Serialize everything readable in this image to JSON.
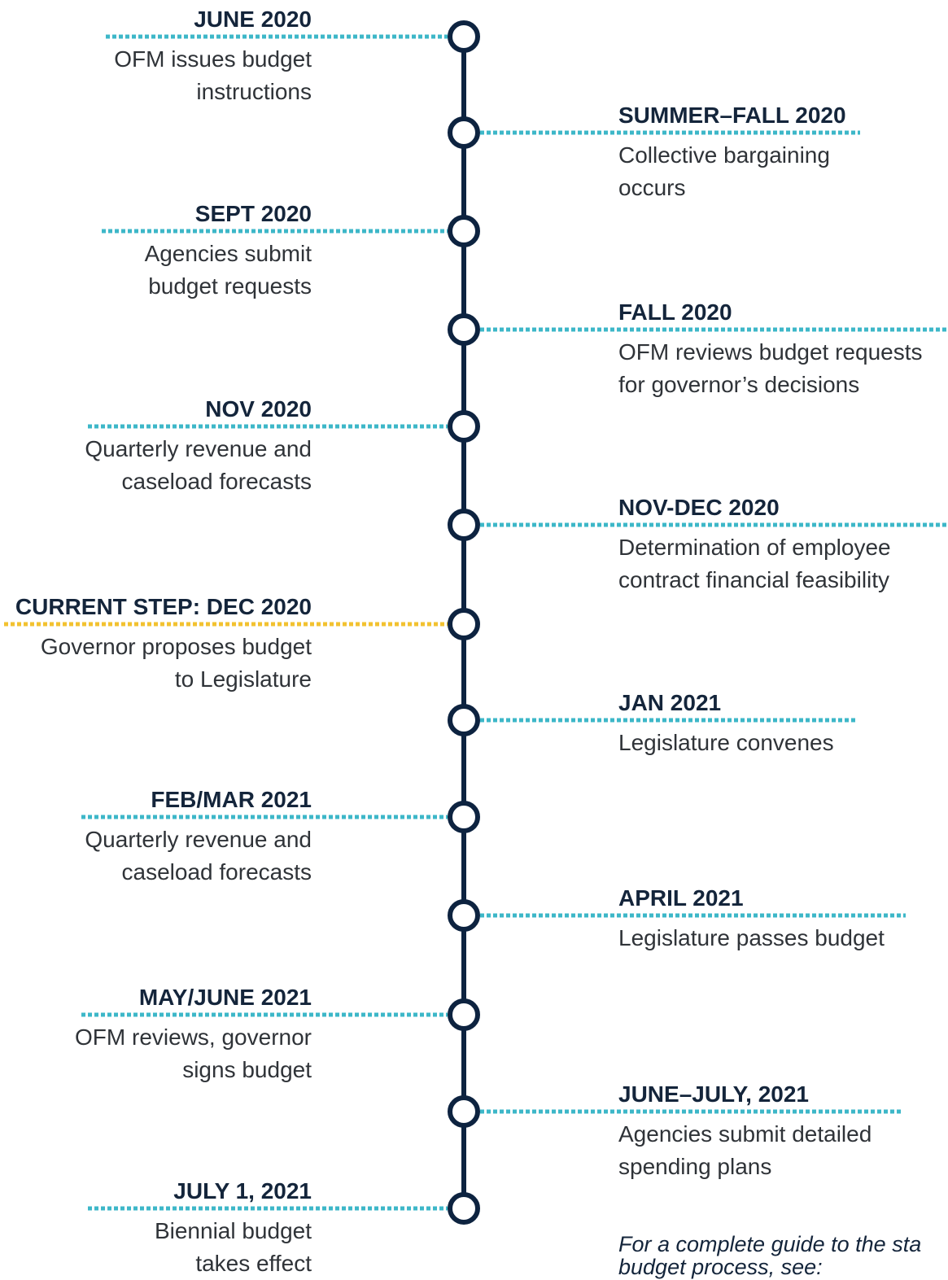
{
  "events": [
    {
      "date": "JUNE 2020",
      "lines": [
        "OFM issues budget",
        "instructions"
      ],
      "side": "left",
      "color": "#3db7c8"
    },
    {
      "date": "SUMMER–FALL 2020",
      "lines": [
        "Collective bargaining",
        "occurs"
      ],
      "side": "right",
      "color": "#3db7c8"
    },
    {
      "date": "SEPT 2020",
      "lines": [
        "Agencies submit",
        "budget requests"
      ],
      "side": "left",
      "color": "#3db7c8"
    },
    {
      "date": "FALL 2020",
      "lines": [
        "OFM reviews budget requests",
        "for governor’s decisions"
      ],
      "side": "right",
      "color": "#3db7c8"
    },
    {
      "date": "NOV 2020",
      "lines": [
        "Quarterly revenue and",
        "caseload forecasts"
      ],
      "side": "left",
      "color": "#3db7c8"
    },
    {
      "date": "NOV-DEC 2020",
      "lines": [
        "Determination of employee",
        "contract financial feasibility"
      ],
      "side": "right",
      "color": "#3db7c8"
    },
    {
      "date": "CURRENT STEP: DEC 2020",
      "lines": [
        "Governor proposes budget",
        "to Legislature"
      ],
      "side": "left",
      "color": "#f2c230"
    },
    {
      "date": "JAN 2021",
      "lines": [
        "Legislature convenes"
      ],
      "side": "right",
      "color": "#3db7c8"
    },
    {
      "date": "FEB/MAR 2021",
      "lines": [
        "Quarterly revenue and",
        "caseload forecasts"
      ],
      "side": "left",
      "color": "#3db7c8"
    },
    {
      "date": "APRIL 2021",
      "lines": [
        "Legislature passes budget"
      ],
      "side": "right",
      "color": "#3db7c8"
    },
    {
      "date": "MAY/JUNE 2021",
      "lines": [
        "OFM reviews, governor",
        "signs budget"
      ],
      "side": "left",
      "color": "#3db7c8"
    },
    {
      "date": "JUNE–JULY, 2021",
      "lines": [
        "Agencies submit detailed",
        "spending plans"
      ],
      "side": "right",
      "color": "#3db7c8"
    },
    {
      "date": "JULY 1, 2021",
      "lines": [
        "Biennial budget",
        "takes effect"
      ],
      "side": "left",
      "color": "#3db7c8"
    }
  ],
  "note": {
    "lines": [
      "For a complete guide to the sta",
      "budget process, see:"
    ]
  }
}
